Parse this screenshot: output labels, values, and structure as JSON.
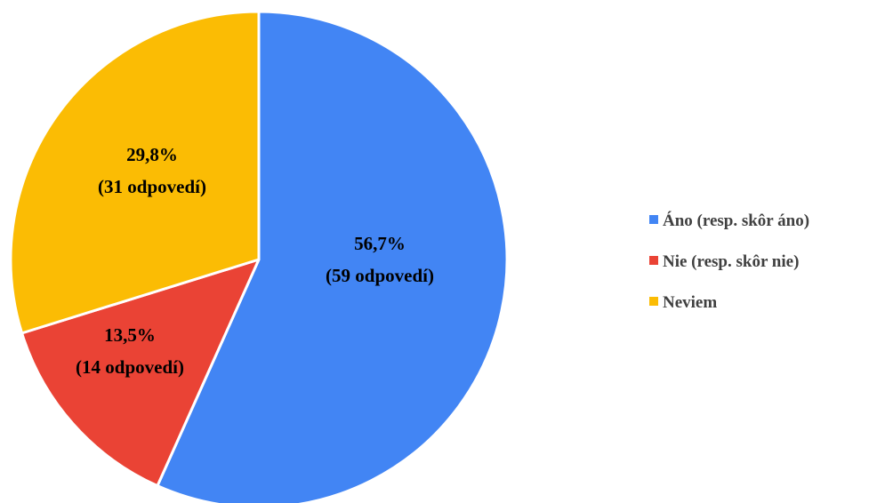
{
  "chart_data": {
    "type": "pie",
    "slices": [
      {
        "name": "Áno (resp. skôr áno)",
        "value": 56.7,
        "pct_label": "56,7%",
        "count_label": "(59 odpovedí)",
        "color": "#4285f4"
      },
      {
        "name": "Nie (resp. skôr nie)",
        "value": 13.5,
        "pct_label": "13,5%",
        "count_label": "(14 odpovedí)",
        "color": "#ea4335"
      },
      {
        "name": "Neviem",
        "value": 29.8,
        "pct_label": "29,8%",
        "count_label": "(31 odpovedí)",
        "color": "#fbbc04"
      }
    ],
    "start_angle": "12 o'clock",
    "direction": "clockwise",
    "legend_position": "right"
  }
}
